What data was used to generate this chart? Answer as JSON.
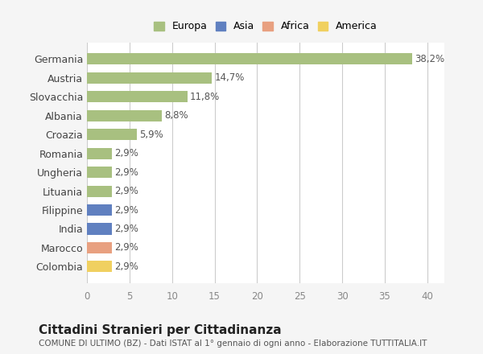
{
  "categories": [
    "Colombia",
    "Marocco",
    "India",
    "Filippine",
    "Lituania",
    "Ungheria",
    "Romania",
    "Croazia",
    "Albania",
    "Slovacchia",
    "Austria",
    "Germania"
  ],
  "values": [
    2.9,
    2.9,
    2.9,
    2.9,
    2.9,
    2.9,
    2.9,
    5.9,
    8.8,
    11.8,
    14.7,
    38.2
  ],
  "labels": [
    "2,9%",
    "2,9%",
    "2,9%",
    "2,9%",
    "2,9%",
    "2,9%",
    "2,9%",
    "5,9%",
    "8,8%",
    "11,8%",
    "14,7%",
    "38,2%"
  ],
  "bar_colors": [
    "#f0d060",
    "#e8a080",
    "#6080c0",
    "#6080c0",
    "#a8c080",
    "#a8c080",
    "#a8c080",
    "#a8c080",
    "#a8c080",
    "#a8c080",
    "#a8c080",
    "#a8c080"
  ],
  "xlim": [
    0,
    42
  ],
  "xticks": [
    0,
    5,
    10,
    15,
    20,
    25,
    30,
    35,
    40
  ],
  "title": "Cittadini Stranieri per Cittadinanza",
  "subtitle": "COMUNE DI ULTIMO (BZ) - Dati ISTAT al 1° gennaio di ogni anno - Elaborazione TUTTITALIA.IT",
  "background_color": "#f5f5f5",
  "bar_bg_color": "#ffffff",
  "grid_color": "#cccccc",
  "legend_labels": [
    "Europa",
    "Asia",
    "Africa",
    "America"
  ],
  "legend_colors": [
    "#a8c080",
    "#6080c0",
    "#e8a080",
    "#f0d060"
  ]
}
